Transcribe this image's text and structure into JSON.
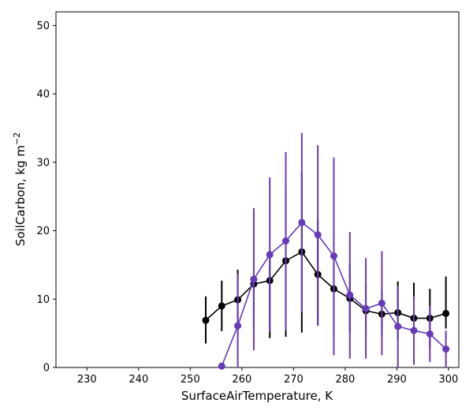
{
  "chart_data": {
    "type": "line",
    "xlabel": "SurfaceAirTemperature,  K",
    "ylabel": "SoilCarbon,  kg m",
    "ylabel_sup": "−2",
    "xlim": [
      224,
      302
    ],
    "ylim": [
      0,
      52
    ],
    "xticks": [
      230,
      240,
      250,
      260,
      270,
      280,
      290,
      300
    ],
    "yticks": [
      0,
      10,
      20,
      30,
      40,
      50
    ],
    "grid": false,
    "series": [
      {
        "color": "#000000",
        "x": [
          253.0,
          256.1,
          259.2,
          262.3,
          265.4,
          268.5,
          271.6,
          274.7,
          277.8,
          280.9,
          284.0,
          287.1,
          290.2,
          293.3,
          296.4,
          299.5
        ],
        "y": [
          6.9,
          9.0,
          9.9,
          12.2,
          12.7,
          15.6,
          16.9,
          13.6,
          11.5,
          10.1,
          8.3,
          7.8,
          8.0,
          7.2,
          7.2,
          7.9
        ],
        "err_low": [
          3.5,
          5.3,
          5.5,
          5.7,
          4.3,
          4.5,
          5.1,
          6.2,
          4.7,
          5.1,
          4.7,
          4.6,
          3.9,
          3.1,
          3.0,
          5.7
        ],
        "err_high": [
          10.4,
          12.7,
          14.3,
          13.5,
          17.1,
          26.6,
          28.5,
          21.5,
          15.2,
          15.2,
          12.2,
          11.1,
          12.6,
          12.4,
          11.5,
          13.3
        ]
      },
      {
        "color": "#673ab7",
        "x": [
          256.1,
          259.2,
          262.3,
          265.4,
          268.5,
          271.6,
          274.7,
          277.8,
          280.9,
          284.0,
          287.1,
          290.2,
          293.3,
          296.4,
          299.5
        ],
        "y": [
          0.2,
          6.1,
          12.9,
          16.5,
          18.5,
          21.2,
          19.4,
          16.3,
          10.6,
          8.6,
          9.4,
          6.0,
          5.4,
          4.9,
          2.7
        ],
        "err_low": [
          0.0,
          0.0,
          2.5,
          5.2,
          5.4,
          8.1,
          6.1,
          1.8,
          1.3,
          1.3,
          1.8,
          0.0,
          0.4,
          0.8,
          0.0
        ],
        "err_high": [
          0.5,
          13.7,
          23.3,
          27.8,
          31.5,
          34.3,
          32.5,
          30.7,
          19.8,
          16.0,
          17.0,
          11.9,
          10.4,
          9.0,
          5.4
        ]
      }
    ]
  }
}
